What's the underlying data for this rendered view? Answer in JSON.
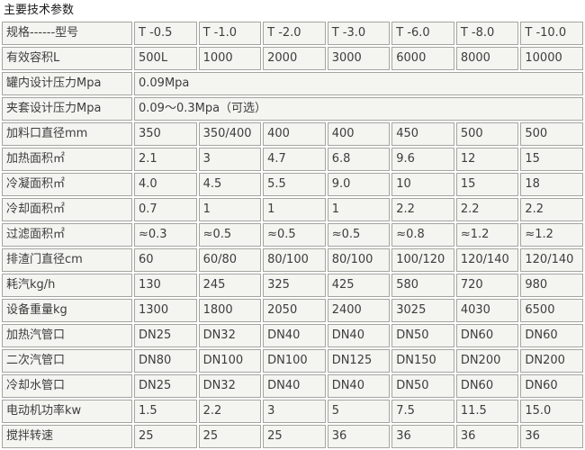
{
  "title": "主要技术参数",
  "colors": {
    "page_bg": "#ffffff",
    "cell_bg": "#f4f4f0",
    "cell_border": "#a5a5a0",
    "cell_text": "#3d3d3d",
    "title_text": "#1a1a1a"
  },
  "table": {
    "columns_count": 8,
    "rows": [
      {
        "label": "规格------型号",
        "values": [
          "T -0.5",
          "T -1.0",
          "T -2.0",
          "T -3.0",
          "T -6.0",
          "T -8.0",
          "T -10.0"
        ]
      },
      {
        "label": "有效容积L",
        "values": [
          "500L",
          "1000",
          "2000",
          "3000",
          "6000",
          "8000",
          "10000"
        ]
      },
      {
        "label": "罐内设计压力Mpa",
        "values": [
          "0.09Mpa"
        ],
        "colspan": 7
      },
      {
        "label": "夹套设计压力Mpa",
        "values": [
          "0.09～0.3Mpa（可选）"
        ],
        "colspan": 7
      },
      {
        "label": "加料口直径mm",
        "values": [
          "350",
          "350/400",
          "400",
          "400",
          "450",
          "500",
          "500"
        ]
      },
      {
        "label": "加热面积㎡",
        "values": [
          "2.1",
          "3",
          "4.7",
          "6.8",
          "9.6",
          "12",
          "15"
        ]
      },
      {
        "label": "冷凝面积㎡",
        "values": [
          "4.0",
          "4.5",
          "5.5",
          "9.0",
          "10",
          "15",
          "18"
        ]
      },
      {
        "label": "冷却面积㎡",
        "values": [
          "0.7",
          "1",
          "1",
          "1",
          "2.2",
          "2.2",
          "2.2"
        ]
      },
      {
        "label": "过滤面积㎡",
        "values": [
          "≈0.3",
          "≈0.5",
          "≈0.5",
          "≈0.5",
          "≈0.8",
          "≈1.2",
          "≈1.2"
        ]
      },
      {
        "label": "排渣门直径cm",
        "values": [
          "60",
          "60/80",
          "80/100",
          "80/100",
          "100/120",
          "120/140",
          "120/140"
        ]
      },
      {
        "label": "耗汽kg/h",
        "values": [
          "130",
          "245",
          "325",
          "425",
          "580",
          "720",
          "980"
        ]
      },
      {
        "label": "设备重量kg",
        "values": [
          "1300",
          "1800",
          "2050",
          "2400",
          "3025",
          "4030",
          "6500"
        ]
      },
      {
        "label": "加热汽管口",
        "values": [
          "DN25",
          "DN32",
          "DN40",
          "DN40",
          "DN50",
          "DN60",
          "DN60"
        ]
      },
      {
        "label": "二次汽管口",
        "values": [
          "DN80",
          "DN100",
          "DN100",
          "DN125",
          "DN150",
          "DN200",
          "DN200"
        ]
      },
      {
        "label": "冷却水管口",
        "values": [
          "DN25",
          "DN32",
          "DN40",
          "DN40",
          "DN50",
          "DN60",
          "DN60"
        ]
      },
      {
        "label": "电动机功率kw",
        "values": [
          "1.5",
          "2.2",
          "3",
          "5",
          "7.5",
          "11.5",
          "15.0"
        ]
      },
      {
        "label": "搅拌转速",
        "values": [
          "25",
          "25",
          "25",
          "36",
          "36",
          "36",
          "36"
        ]
      }
    ]
  }
}
